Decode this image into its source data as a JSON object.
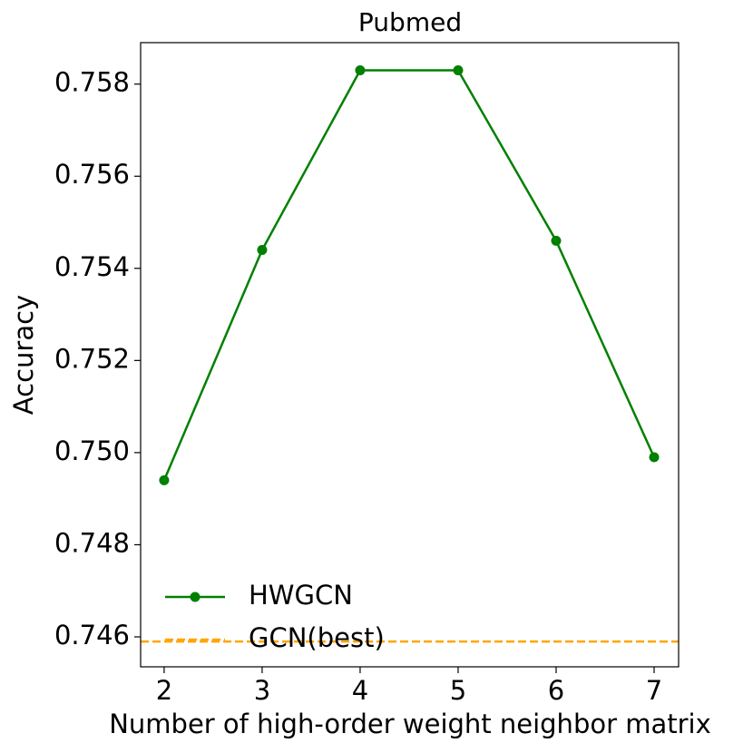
{
  "chart_data": {
    "type": "line",
    "title": "Pubmed",
    "x_label": "Number of high-order weight neighbor matrix",
    "y_label": "Accuracy",
    "x": [
      2,
      3,
      4,
      5,
      6,
      7
    ],
    "series": [
      {
        "name": "HWGCN",
        "color": "green",
        "marker": "circle",
        "values": [
          0.7494,
          0.7544,
          0.7583,
          0.7583,
          0.7546,
          0.7499
        ]
      }
    ],
    "hlines": [
      {
        "name": "GCN(best)",
        "color": "orange",
        "style": "dashed",
        "value": 0.7459
      }
    ],
    "xlim": [
      1.76,
      7.25
    ],
    "xticks": [
      2,
      3,
      4,
      5,
      6,
      7
    ],
    "ylim": [
      0.74535,
      0.7589
    ],
    "yticks": [
      0.746,
      0.748,
      {
        "value": 0.75,
        "label": "0.750"
      },
      0.752,
      0.754,
      0.756,
      0.758
    ],
    "legend": "lower left"
  }
}
